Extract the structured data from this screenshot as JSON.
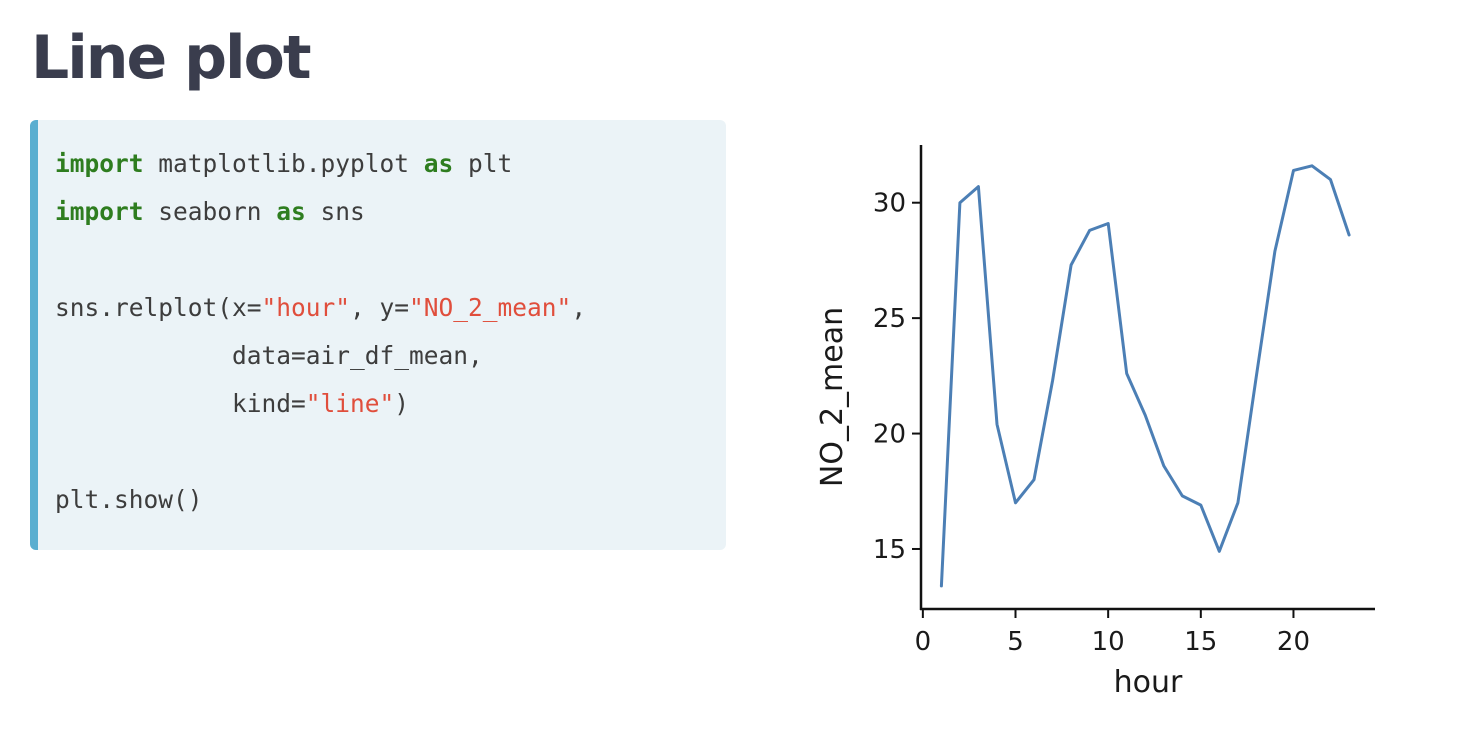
{
  "slide": {
    "title": "Line plot"
  },
  "code": {
    "lines": [
      [
        {
          "t": "import",
          "c": "kw"
        },
        {
          "t": " matplotlib.pyplot "
        },
        {
          "t": "as",
          "c": "kw"
        },
        {
          "t": " plt"
        }
      ],
      [
        {
          "t": "import",
          "c": "kw"
        },
        {
          "t": " seaborn "
        },
        {
          "t": "as",
          "c": "kw"
        },
        {
          "t": " sns"
        }
      ],
      [],
      [
        {
          "t": "sns.relplot(x="
        },
        {
          "t": "\"hour\"",
          "c": "str"
        },
        {
          "t": ", y="
        },
        {
          "t": "\"NO_2_mean\"",
          "c": "str"
        },
        {
          "t": ","
        }
      ],
      [
        {
          "t": "            data=air_df_mean,"
        }
      ],
      [
        {
          "t": "            kind="
        },
        {
          "t": "\"line\"",
          "c": "str"
        },
        {
          "t": ")"
        }
      ],
      [],
      [
        {
          "t": "plt.show()"
        }
      ]
    ]
  },
  "chart_data": {
    "type": "line",
    "xlabel": "hour",
    "ylabel": "NO_2_mean",
    "xlim": [
      -0.1,
      24.4
    ],
    "ylim": [
      12.4,
      32.5
    ],
    "xticks": [
      0,
      5,
      10,
      15,
      20
    ],
    "yticks": [
      15,
      20,
      25,
      30
    ],
    "grid": false,
    "line_color": "#4c7fb5",
    "x": [
      1,
      2,
      3,
      4,
      5,
      6,
      7,
      8,
      9,
      10,
      11,
      12,
      13,
      14,
      15,
      16,
      17,
      18,
      19,
      20,
      21,
      22,
      23
    ],
    "y": [
      13.4,
      30.0,
      30.7,
      20.4,
      17.0,
      18.0,
      22.3,
      27.3,
      28.8,
      29.1,
      22.6,
      20.8,
      18.6,
      17.3,
      16.9,
      14.9,
      17.0,
      22.5,
      27.9,
      31.4,
      31.6,
      31.0,
      28.6
    ]
  }
}
